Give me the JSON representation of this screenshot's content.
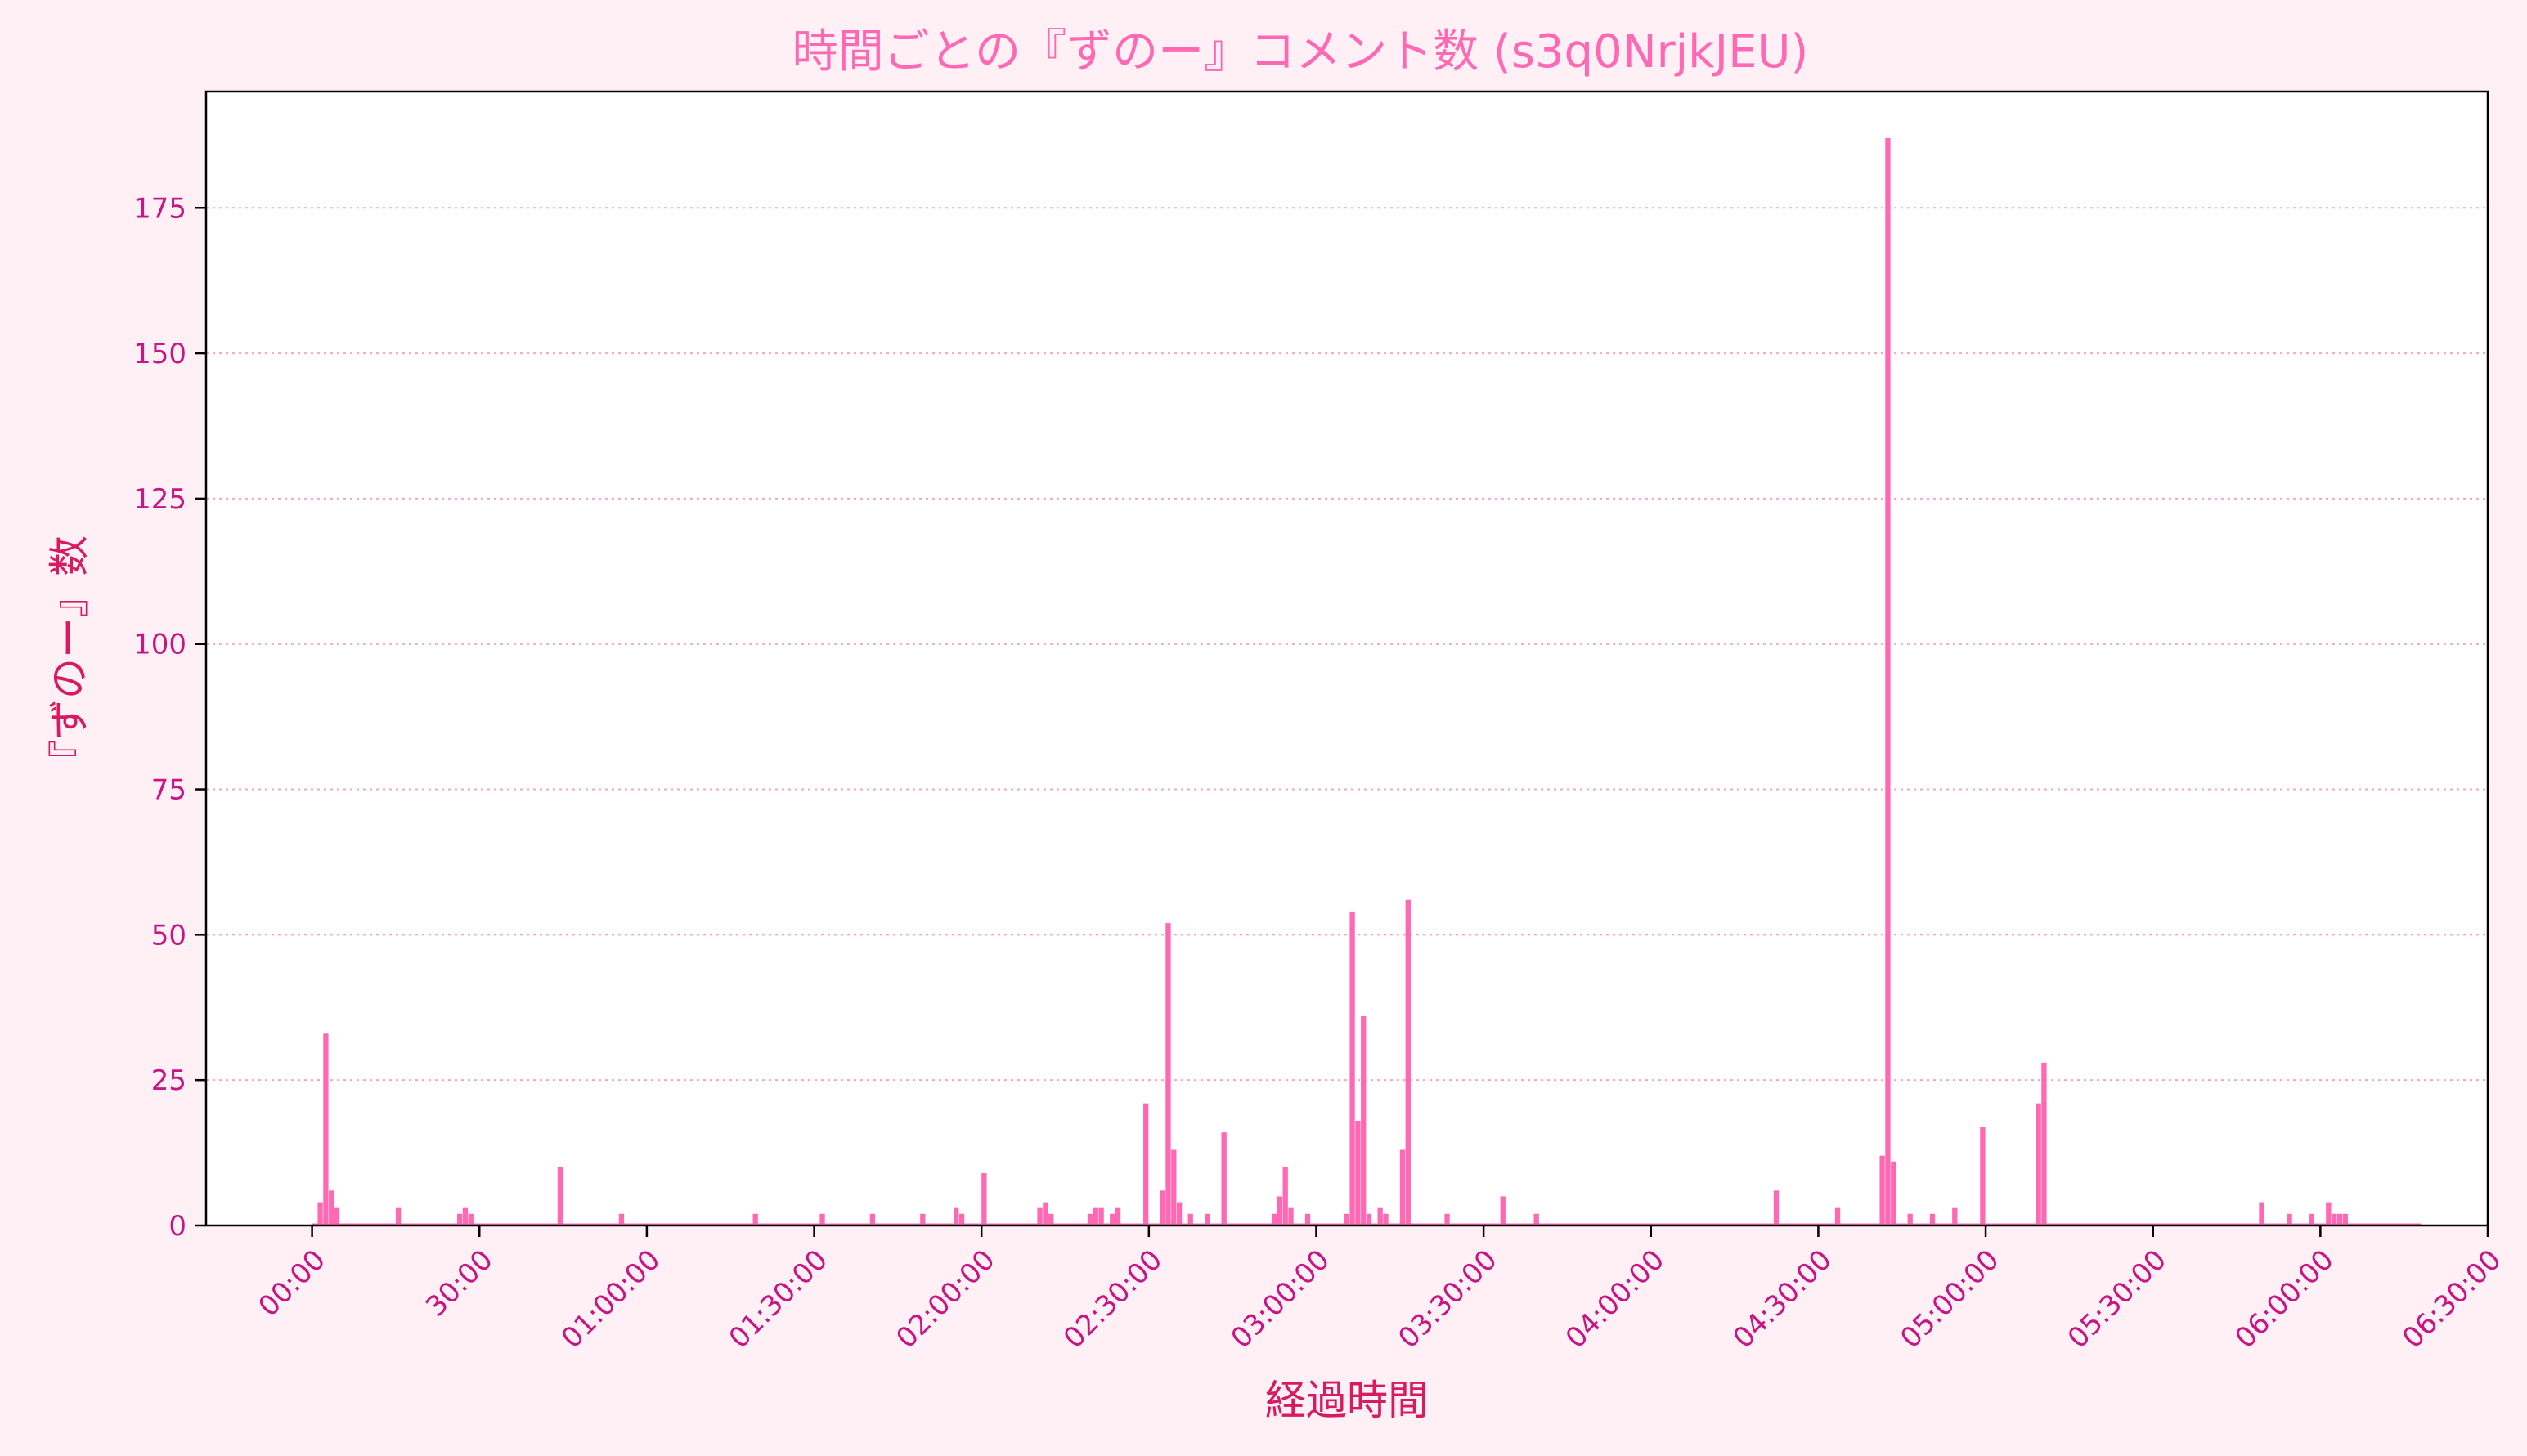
{
  "chart_data": {
    "type": "bar",
    "title": "時間ごとの『ずのー』コメント数 (s3q0NrjkJEU)",
    "xlabel": "経過時間",
    "ylabel": "『ずのー』数",
    "x_unit": "minutes",
    "xlim": [
      -19,
      390
    ],
    "ylim": [
      0,
      195
    ],
    "y_ticks": [
      0,
      25,
      50,
      75,
      100,
      125,
      150,
      175
    ],
    "x_ticks": [
      {
        "value": 0,
        "label": "00:00"
      },
      {
        "value": 30,
        "label": "30:00"
      },
      {
        "value": 60,
        "label": "01:00:00"
      },
      {
        "value": 90,
        "label": "01:30:00"
      },
      {
        "value": 120,
        "label": "02:00:00"
      },
      {
        "value": 150,
        "label": "02:30:00"
      },
      {
        "value": 180,
        "label": "03:00:00"
      },
      {
        "value": 210,
        "label": "03:30:00"
      },
      {
        "value": 240,
        "label": "04:00:00"
      },
      {
        "value": 270,
        "label": "04:30:00"
      },
      {
        "value": 300,
        "label": "05:00:00"
      },
      {
        "value": 330,
        "label": "05:30:00"
      },
      {
        "value": 360,
        "label": "06:00:00"
      },
      {
        "value": 390,
        "label": "06:30:00"
      }
    ],
    "bin_width": 1,
    "grid": "y-dotted",
    "color": "#ff69b4",
    "x_start": 0,
    "x_end": 378,
    "points": [
      {
        "x": 1,
        "y": 4
      },
      {
        "x": 2,
        "y": 33
      },
      {
        "x": 3,
        "y": 6
      },
      {
        "x": 4,
        "y": 3
      },
      {
        "x": 15,
        "y": 3
      },
      {
        "x": 26,
        "y": 2
      },
      {
        "x": 27,
        "y": 3
      },
      {
        "x": 28,
        "y": 2
      },
      {
        "x": 44,
        "y": 10
      },
      {
        "x": 55,
        "y": 2
      },
      {
        "x": 79,
        "y": 2
      },
      {
        "x": 91,
        "y": 2
      },
      {
        "x": 100,
        "y": 2
      },
      {
        "x": 109,
        "y": 2
      },
      {
        "x": 115,
        "y": 3
      },
      {
        "x": 116,
        "y": 2
      },
      {
        "x": 120,
        "y": 9
      },
      {
        "x": 130,
        "y": 3
      },
      {
        "x": 131,
        "y": 4
      },
      {
        "x": 132,
        "y": 2
      },
      {
        "x": 139,
        "y": 2
      },
      {
        "x": 140,
        "y": 3
      },
      {
        "x": 141,
        "y": 3
      },
      {
        "x": 143,
        "y": 2
      },
      {
        "x": 144,
        "y": 3
      },
      {
        "x": 149,
        "y": 21
      },
      {
        "x": 152,
        "y": 6
      },
      {
        "x": 153,
        "y": 52
      },
      {
        "x": 154,
        "y": 13
      },
      {
        "x": 155,
        "y": 4
      },
      {
        "x": 157,
        "y": 2
      },
      {
        "x": 160,
        "y": 2
      },
      {
        "x": 163,
        "y": 16
      },
      {
        "x": 172,
        "y": 2
      },
      {
        "x": 173,
        "y": 5
      },
      {
        "x": 174,
        "y": 10
      },
      {
        "x": 175,
        "y": 3
      },
      {
        "x": 178,
        "y": 2
      },
      {
        "x": 185,
        "y": 2
      },
      {
        "x": 186,
        "y": 54
      },
      {
        "x": 187,
        "y": 18
      },
      {
        "x": 188,
        "y": 36
      },
      {
        "x": 189,
        "y": 2
      },
      {
        "x": 191,
        "y": 3
      },
      {
        "x": 192,
        "y": 2
      },
      {
        "x": 195,
        "y": 13
      },
      {
        "x": 196,
        "y": 56
      },
      {
        "x": 203,
        "y": 2
      },
      {
        "x": 213,
        "y": 5
      },
      {
        "x": 219,
        "y": 2
      },
      {
        "x": 262,
        "y": 6
      },
      {
        "x": 273,
        "y": 3
      },
      {
        "x": 281,
        "y": 12
      },
      {
        "x": 282,
        "y": 187
      },
      {
        "x": 283,
        "y": 11
      },
      {
        "x": 286,
        "y": 2
      },
      {
        "x": 290,
        "y": 2
      },
      {
        "x": 294,
        "y": 3
      },
      {
        "x": 299,
        "y": 17
      },
      {
        "x": 309,
        "y": 21
      },
      {
        "x": 310,
        "y": 28
      },
      {
        "x": 349,
        "y": 4
      },
      {
        "x": 354,
        "y": 2
      },
      {
        "x": 358,
        "y": 2
      },
      {
        "x": 361,
        "y": 4
      },
      {
        "x": 362,
        "y": 2
      },
      {
        "x": 363,
        "y": 2
      },
      {
        "x": 364,
        "y": 2
      }
    ]
  }
}
